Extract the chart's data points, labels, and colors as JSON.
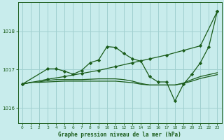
{
  "title": "Graphe pression niveau de la mer (hPa)",
  "bg_color": "#c8ecec",
  "grid_color": "#a0d0d0",
  "line_color": "#1a5c1a",
  "xlim": [
    -0.5,
    23.5
  ],
  "ylim": [
    1015.6,
    1018.75
  ],
  "yticks": [
    1016,
    1017,
    1018
  ],
  "xticks": [
    0,
    1,
    2,
    3,
    4,
    5,
    6,
    7,
    8,
    9,
    10,
    11,
    12,
    13,
    14,
    15,
    16,
    17,
    18,
    19,
    20,
    21,
    22,
    23
  ],
  "series": [
    {
      "x": [
        0,
        1,
        2,
        3,
        4,
        5,
        6,
        7,
        8,
        9,
        10,
        11,
        12,
        13,
        14,
        15,
        16,
        17,
        18,
        19,
        20,
        21,
        22,
        23
      ],
      "y": [
        1016.62,
        1016.67,
        1016.67,
        1016.68,
        1016.69,
        1016.7,
        1016.7,
        1016.7,
        1016.7,
        1016.7,
        1016.7,
        1016.7,
        1016.68,
        1016.66,
        1016.62,
        1016.6,
        1016.6,
        1016.6,
        1016.6,
        1016.64,
        1016.7,
        1016.77,
        1016.82,
        1016.87
      ],
      "marker": null,
      "lw": 0.9
    },
    {
      "x": [
        0,
        1,
        2,
        3,
        4,
        5,
        6,
        7,
        8,
        9,
        10,
        11,
        12,
        13,
        14,
        15,
        16,
        17,
        18,
        19,
        20,
        21,
        22,
        23
      ],
      "y": [
        1016.62,
        1016.67,
        1016.68,
        1016.72,
        1016.74,
        1016.74,
        1016.74,
        1016.74,
        1016.75,
        1016.76,
        1016.76,
        1016.76,
        1016.74,
        1016.7,
        1016.64,
        1016.6,
        1016.6,
        1016.6,
        1016.6,
        1016.65,
        1016.74,
        1016.82,
        1016.87,
        1016.92
      ],
      "marker": null,
      "lw": 0.9
    },
    {
      "x": [
        0,
        3,
        4,
        5,
        6,
        7,
        8,
        9,
        10,
        11,
        12,
        13,
        14,
        15,
        16,
        17,
        18,
        19,
        20,
        21,
        22,
        23
      ],
      "y": [
        1016.62,
        1017.02,
        1017.02,
        1016.96,
        1016.88,
        1016.98,
        1017.18,
        1017.25,
        1017.6,
        1017.58,
        1017.42,
        1017.28,
        1017.22,
        1016.82,
        1016.68,
        1016.68,
        1016.18,
        1016.62,
        1016.88,
        1017.18,
        1017.6,
        1018.52
      ],
      "marker": "D",
      "lw": 0.9
    },
    {
      "x": [
        0,
        3,
        5,
        7,
        9,
        11,
        13,
        15,
        17,
        19,
        21,
        23
      ],
      "y": [
        1016.62,
        1016.75,
        1016.82,
        1016.9,
        1016.98,
        1017.08,
        1017.18,
        1017.28,
        1017.38,
        1017.5,
        1017.62,
        1018.52
      ],
      "marker": "D",
      "lw": 0.9
    }
  ]
}
